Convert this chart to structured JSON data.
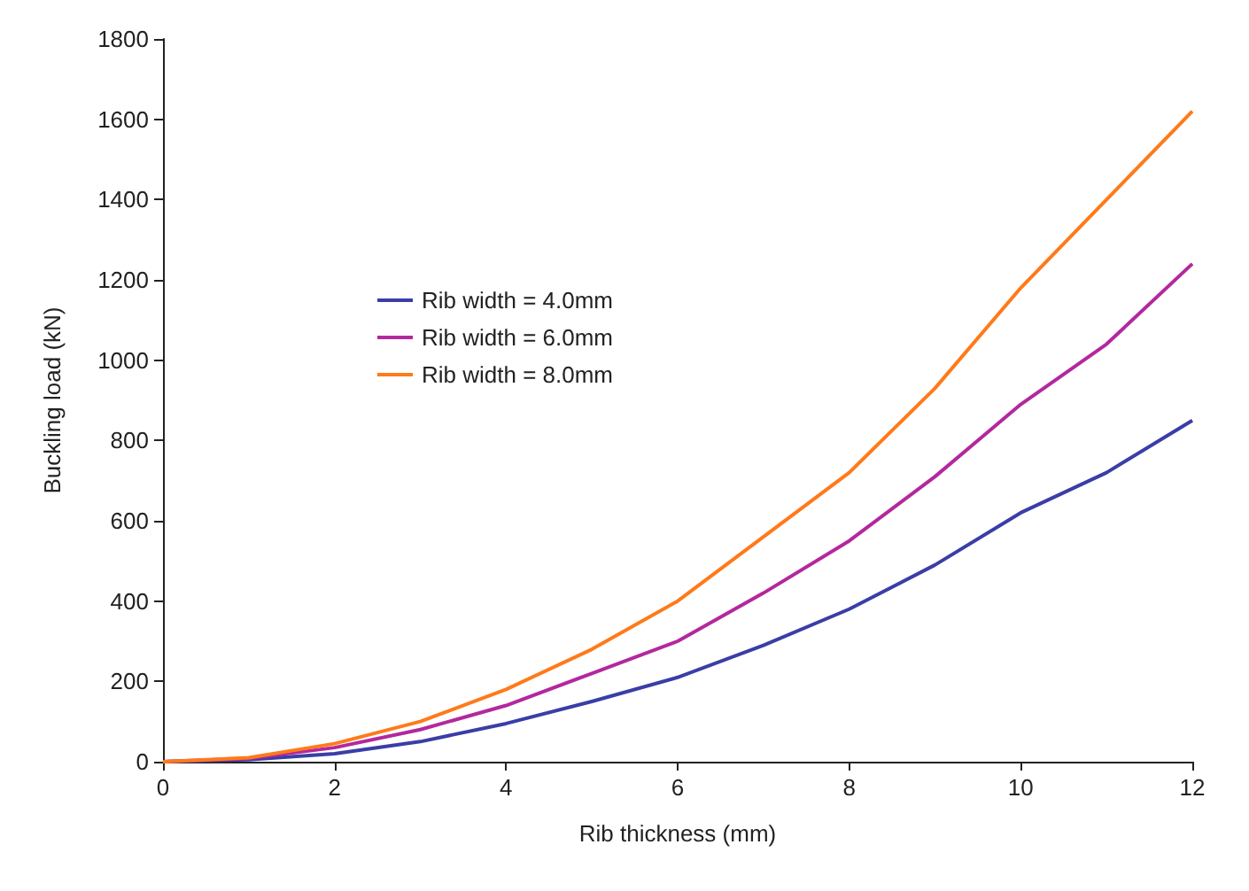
{
  "chart_data": {
    "type": "line",
    "xlabel": "Rib thickness (mm)",
    "ylabel": "Buckling load (kN)",
    "x": [
      0,
      1,
      2,
      3,
      4,
      5,
      6,
      7,
      8,
      9,
      10,
      11,
      12
    ],
    "series": [
      {
        "name": "Rib width = 4.0mm",
        "color": "#3a3ea6",
        "values": [
          0,
          5,
          20,
          50,
          95,
          150,
          210,
          290,
          380,
          490,
          620,
          720,
          850
        ]
      },
      {
        "name": "Rib width = 6.0mm",
        "color": "#b3289e",
        "values": [
          0,
          8,
          35,
          80,
          140,
          220,
          300,
          420,
          550,
          710,
          890,
          1040,
          1240
        ]
      },
      {
        "name": "Rib width = 8.0mm",
        "color": "#ff7a1a",
        "values": [
          0,
          10,
          45,
          100,
          180,
          280,
          400,
          560,
          720,
          930,
          1180,
          1400,
          1620
        ]
      }
    ],
    "xlim": [
      0,
      12
    ],
    "xticks": [
      0,
      2,
      4,
      6,
      8,
      10,
      12
    ],
    "ylim": [
      0,
      1800
    ],
    "yticks": [
      0,
      200,
      400,
      600,
      800,
      1000,
      1200,
      1400,
      1600,
      1800
    ],
    "grid": false,
    "legend": "left",
    "marker": "none",
    "line_style": "solid"
  }
}
